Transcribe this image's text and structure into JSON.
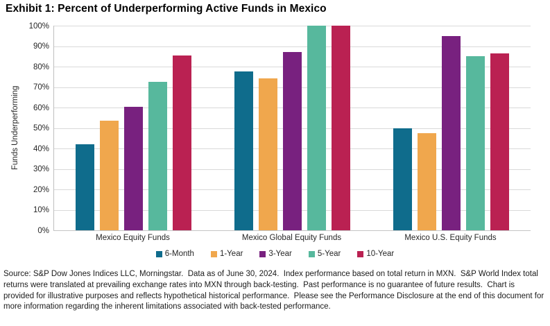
{
  "title": "Exhibit 1: Percent of Underperforming Active Funds in Mexico",
  "source_text": "Source: S&P Dow Jones Indices LLC, Morningstar.  Data as of June 30, 2024.  Index performance based on total return in MXN.  S&P World Index total returns were translated at prevailing exchange rates into MXN through back-testing.  Past performance is no guarantee of future results.  Chart is provided for illustrative purposes and reflects hypothetical historical performance.  Please see the Performance Disclosure at the end of this document for more information regarding the inherent limitations associated with back-tested performance.",
  "chart_data": {
    "type": "bar",
    "title": "Exhibit 1: Percent of Underperforming Active Funds in Mexico",
    "xlabel": "",
    "ylabel": "Funds Underperforming",
    "ylim": [
      0,
      100
    ],
    "ytick_step": 10,
    "ytick_suffix": "%",
    "grid": true,
    "legend_position": "bottom",
    "categories": [
      "Mexico Equity Funds",
      "Mexico Global Equity Funds",
      "Mexico U.S. Equity Funds"
    ],
    "series": [
      {
        "name": "6-Month",
        "color": "#0F6C8C",
        "values": [
          42,
          77.8,
          50
        ]
      },
      {
        "name": "1-Year",
        "color": "#F0A74D",
        "values": [
          53.5,
          74.1,
          47.5
        ]
      },
      {
        "name": "3-Year",
        "color": "#78217F",
        "values": [
          60.5,
          87.1,
          95
        ]
      },
      {
        "name": "5-Year",
        "color": "#57B89D",
        "values": [
          72.7,
          100,
          85
        ]
      },
      {
        "name": "10-Year",
        "color": "#BA2152",
        "values": [
          85.5,
          100,
          86.5
        ]
      }
    ]
  }
}
